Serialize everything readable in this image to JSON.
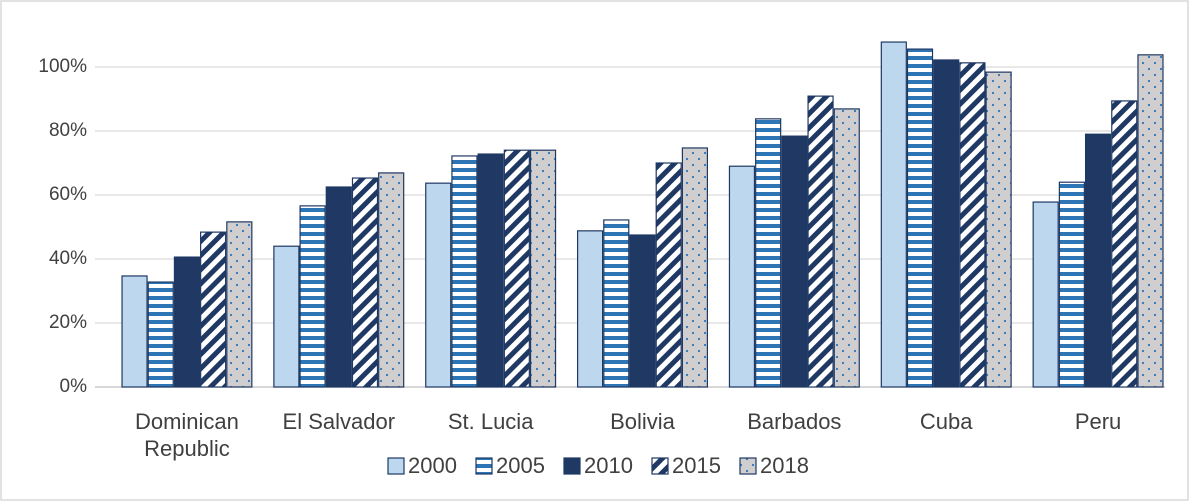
{
  "chart_data": {
    "type": "bar",
    "categories": [
      "Dominican Republic",
      "El Salvador",
      "St. Lucia",
      "Bolivia",
      "Barbados",
      "Cuba",
      "Peru"
    ],
    "series": [
      {
        "name": "2000",
        "color": "#bdd7ee",
        "pattern": "solid",
        "values": [
          34.7,
          44.0,
          63.7,
          48.8,
          69.0,
          107.8,
          57.8
        ]
      },
      {
        "name": "2005",
        "color": "#2e75b6",
        "pattern": "horizontal-stripes",
        "values": [
          32.8,
          56.6,
          72.2,
          52.2,
          83.8,
          105.6,
          64.0
        ]
      },
      {
        "name": "2010",
        "color": "#1f3864",
        "pattern": "solid",
        "values": [
          40.6,
          62.5,
          72.8,
          47.5,
          78.4,
          102.2,
          79.0
        ]
      },
      {
        "name": "2015",
        "color": "#1f3864",
        "pattern": "diagonal-stripes",
        "values": [
          48.4,
          65.3,
          74.0,
          70.0,
          90.9,
          101.3,
          89.4
        ]
      },
      {
        "name": "2018",
        "color": "#d0cece",
        "pattern": "dots",
        "values": [
          51.6,
          66.9,
          74.0,
          74.7,
          86.9,
          98.4,
          103.8
        ]
      }
    ],
    "ylim": [
      0,
      112
    ],
    "yticks": [
      {
        "value": 0,
        "label": "0%"
      },
      {
        "value": 20,
        "label": "20%"
      },
      {
        "value": 40,
        "label": "40%"
      },
      {
        "value": 60,
        "label": "60%"
      },
      {
        "value": 80,
        "label": "80%"
      },
      {
        "value": 100,
        "label": "100%"
      }
    ],
    "grid": true,
    "legend": "bottom"
  }
}
